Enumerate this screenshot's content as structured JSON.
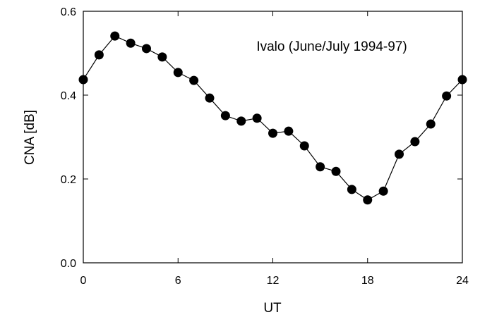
{
  "chart_data": {
    "type": "line",
    "annotation": "Ivalo (June/July 1994-97)",
    "xlabel": "UT",
    "ylabel": "CNA [dB]",
    "x": [
      0,
      1,
      2,
      3,
      4,
      5,
      6,
      7,
      8,
      9,
      10,
      11,
      12,
      13,
      14,
      15,
      16,
      17,
      18,
      19,
      20,
      21,
      22,
      23,
      24
    ],
    "series": [
      {
        "color": "#000000",
        "values": [
          0.437,
          0.496,
          0.541,
          0.524,
          0.511,
          0.491,
          0.454,
          0.435,
          0.393,
          0.351,
          0.338,
          0.345,
          0.309,
          0.314,
          0.279,
          0.229,
          0.218,
          0.175,
          0.15,
          0.171,
          0.259,
          0.289,
          0.331,
          0.398,
          0.437
        ]
      }
    ],
    "xlim": [
      0,
      24
    ],
    "xticks": [
      0,
      6,
      12,
      18,
      24
    ],
    "ylim": [
      0,
      0.6
    ],
    "yticks": [
      {
        "value": 0,
        "label": "0.0"
      },
      0.2,
      0.4,
      0.6
    ]
  }
}
